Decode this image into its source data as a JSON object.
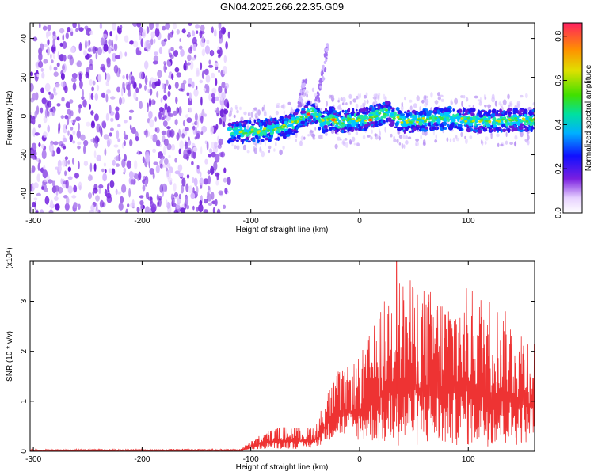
{
  "title": "GN04.2025.266.22.35.G09",
  "chart_data": [
    {
      "type": "heatmap",
      "xlabel": "Height of straight line (km)",
      "ylabel": "Frequency (Hz)",
      "xlim": [
        -303,
        161
      ],
      "ylim": [
        -50,
        48
      ],
      "x_ticks": [
        -300,
        -200,
        -100,
        0,
        100
      ],
      "y_ticks": [
        -40,
        -20,
        0,
        20,
        40
      ],
      "colorbar": {
        "label": "Normalized spectral amplitude",
        "ticks": [
          0.0,
          0.2,
          0.4,
          0.6,
          0.8
        ],
        "range": [
          0,
          0.86
        ]
      },
      "noise_region_x": [
        -303,
        -120
      ],
      "signal_track": [
        {
          "x": -120,
          "y": -8
        },
        {
          "x": -100,
          "y": -8
        },
        {
          "x": -80,
          "y": -7
        },
        {
          "x": -65,
          "y": -5
        },
        {
          "x": -50,
          "y": 0
        },
        {
          "x": -45,
          "y": 2
        },
        {
          "x": -40,
          "y": 1
        },
        {
          "x": -35,
          "y": -3
        },
        {
          "x": -25,
          "y": -1
        },
        {
          "x": -20,
          "y": -4
        },
        {
          "x": -10,
          "y": -2
        },
        {
          "x": 0,
          "y": -2
        },
        {
          "x": 10,
          "y": -1
        },
        {
          "x": 25,
          "y": 2
        },
        {
          "x": 40,
          "y": -3
        },
        {
          "x": 60,
          "y": -2
        },
        {
          "x": 80,
          "y": -1
        },
        {
          "x": 100,
          "y": -2
        },
        {
          "x": 120,
          "y": -3
        },
        {
          "x": 140,
          "y": -2
        },
        {
          "x": 161,
          "y": -2
        }
      ],
      "branches": [
        [
          {
            "x": -55,
            "y": 5
          },
          {
            "x": -52,
            "y": 15
          },
          {
            "x": -50,
            "y": 19
          }
        ],
        [
          {
            "x": -40,
            "y": 3
          },
          {
            "x": -36,
            "y": 15
          },
          {
            "x": -32,
            "y": 28
          },
          {
            "x": -30,
            "y": 36
          }
        ]
      ],
      "hot_spots": [
        {
          "x": -47,
          "y": 1
        },
        {
          "x": -24,
          "y": -2
        },
        {
          "x": 10,
          "y": -2
        }
      ]
    },
    {
      "type": "line",
      "xlabel": "Height of straight line (km)",
      "ylabel": "SNR (10 * v/v)",
      "scale_note": "(x10⁴)",
      "xlim": [
        -303,
        161
      ],
      "ylim": [
        0,
        3.8
      ],
      "x_ticks": [
        -300,
        -200,
        -100,
        0,
        100
      ],
      "y_ticks": [
        0,
        1,
        2,
        3
      ],
      "color": "#ee3333",
      "envelope": [
        {
          "x": -303,
          "low": 0.0,
          "high": 0.04
        },
        {
          "x": -110,
          "low": 0.0,
          "high": 0.05
        },
        {
          "x": -100,
          "low": 0.02,
          "high": 0.2
        },
        {
          "x": -90,
          "low": 0.05,
          "high": 0.35
        },
        {
          "x": -80,
          "low": 0.05,
          "high": 0.45
        },
        {
          "x": -70,
          "low": 0.05,
          "high": 0.5
        },
        {
          "x": -60,
          "low": 0.05,
          "high": 0.5
        },
        {
          "x": -50,
          "low": 0.05,
          "high": 0.45
        },
        {
          "x": -40,
          "low": 0.08,
          "high": 0.55
        },
        {
          "x": -30,
          "low": 0.2,
          "high": 1.2
        },
        {
          "x": -20,
          "low": 0.3,
          "high": 1.6
        },
        {
          "x": -10,
          "low": 0.3,
          "high": 1.7
        },
        {
          "x": 0,
          "low": 0.2,
          "high": 1.9
        },
        {
          "x": 10,
          "low": 0.2,
          "high": 2.4
        },
        {
          "x": 20,
          "low": 0.1,
          "high": 2.9
        },
        {
          "x": 30,
          "low": 0.1,
          "high": 3.4
        },
        {
          "x": 40,
          "low": 0.1,
          "high": 3.5
        },
        {
          "x": 60,
          "low": 0.1,
          "high": 3.3
        },
        {
          "x": 80,
          "low": 0.1,
          "high": 3.1
        },
        {
          "x": 100,
          "low": 0.1,
          "high": 3.3
        },
        {
          "x": 120,
          "low": 0.1,
          "high": 3.1
        },
        {
          "x": 140,
          "low": 0.1,
          "high": 2.7
        },
        {
          "x": 161,
          "low": 0.2,
          "high": 2.3
        }
      ],
      "peak": {
        "x": 34,
        "y": 3.8
      }
    }
  ]
}
